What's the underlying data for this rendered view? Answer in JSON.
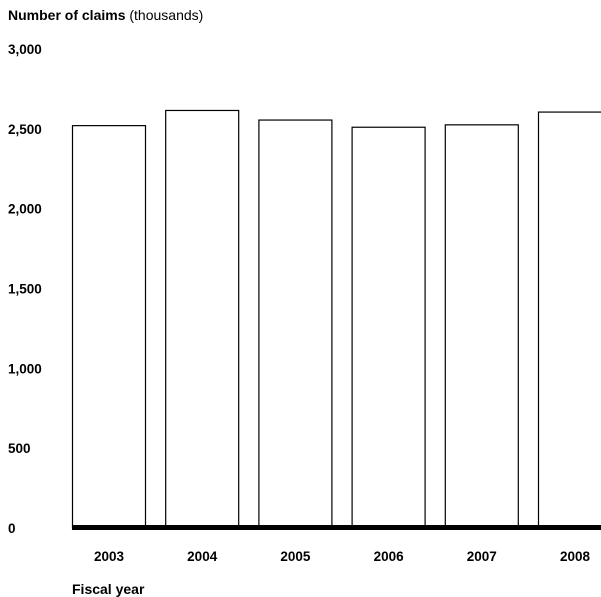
{
  "chart_data": {
    "type": "bar",
    "title_bold": "Number of claims",
    "title_rest": "(thousands)",
    "xlabel": "Fiscal year",
    "categories": [
      "2003",
      "2004",
      "2005",
      "2006",
      "2007",
      "2008"
    ],
    "values": [
      2520,
      2615,
      2555,
      2510,
      2525,
      2605
    ],
    "ylim": [
      0,
      3000
    ],
    "yticks": [
      0,
      500,
      1000,
      1500,
      2000,
      2500,
      3000
    ],
    "ytick_labels": [
      "0",
      "500",
      "1,000",
      "1,500",
      "2,000",
      "2,500",
      "3,000"
    ],
    "grid": false,
    "legend": "none",
    "bar_fill": "#ffffff",
    "bar_stroke": "#000000",
    "axis_color": "#000000"
  }
}
